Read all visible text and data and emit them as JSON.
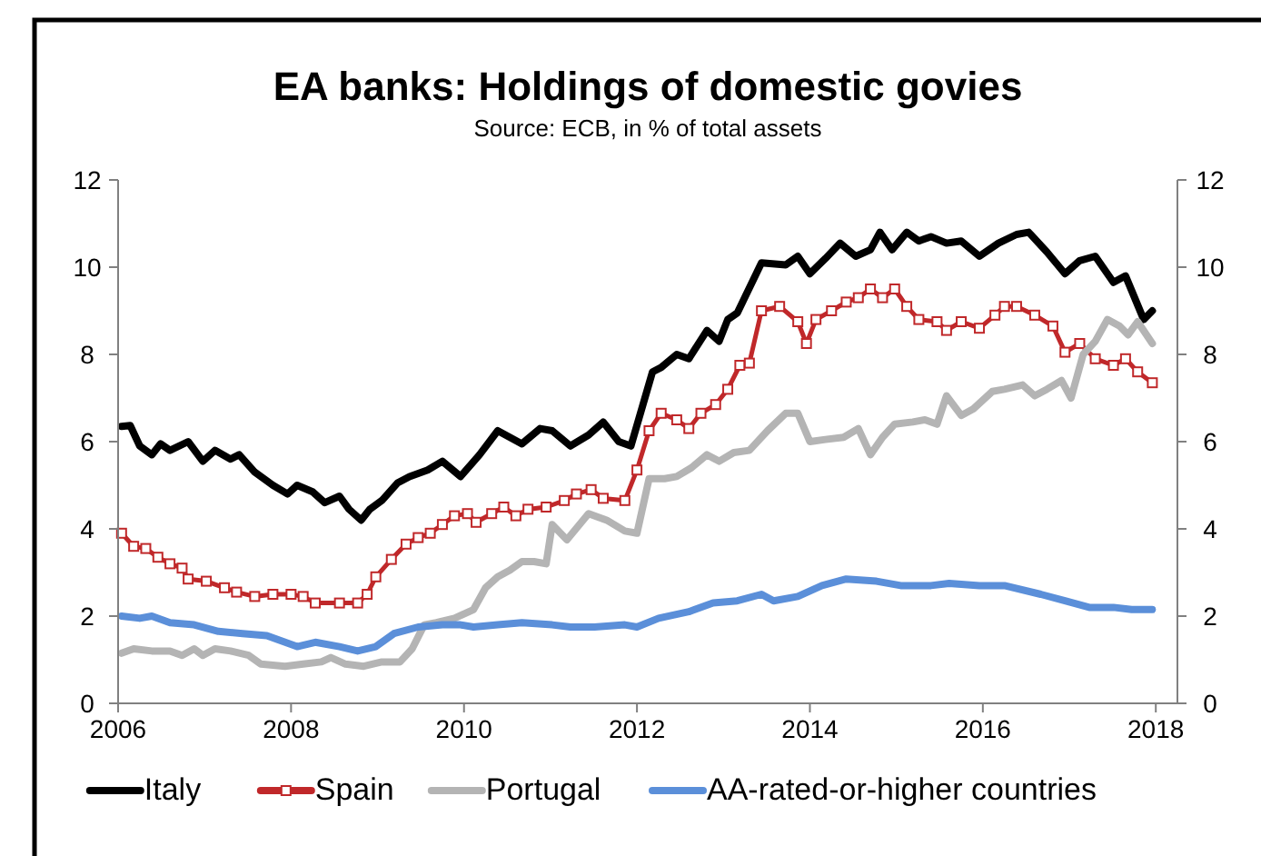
{
  "chart_data": {
    "type": "line",
    "title": "EA banks: Holdings of domestic govies",
    "subtitle": "Source: ECB, in % of total assets",
    "xlim": [
      2006,
      2018.25
    ],
    "xticks": [
      2006,
      2008,
      2010,
      2012,
      2014,
      2016,
      2018
    ],
    "ylim": [
      0,
      12
    ],
    "yticks": [
      0,
      2,
      4,
      6,
      8,
      10,
      12
    ],
    "y2lim": [
      0,
      12
    ],
    "y2ticks": [
      0,
      2,
      4,
      6,
      8,
      10,
      12
    ],
    "grid": false,
    "legend": "bottom",
    "line_style": "solid",
    "series": [
      {
        "name": "Italy",
        "color": "#000000",
        "marker": "none",
        "x": [
          2006.04,
          2006.14,
          2006.25,
          2006.39,
          2006.49,
          2006.6,
          2006.81,
          2006.98,
          2007.12,
          2007.3,
          2007.4,
          2007.58,
          2007.79,
          2007.96,
          2008.07,
          2008.25,
          2008.39,
          2008.56,
          2008.67,
          2008.81,
          2008.91,
          2009.05,
          2009.23,
          2009.37,
          2009.58,
          2009.75,
          2009.96,
          2010.18,
          2010.39,
          2010.53,
          2010.67,
          2010.88,
          2011.02,
          2011.23,
          2011.44,
          2011.61,
          2011.79,
          2011.93,
          2012.18,
          2012.28,
          2012.46,
          2012.6,
          2012.81,
          2012.95,
          2013.05,
          2013.16,
          2013.44,
          2013.72,
          2013.86,
          2014.0,
          2014.18,
          2014.35,
          2014.53,
          2014.7,
          2014.81,
          2014.95,
          2015.12,
          2015.26,
          2015.4,
          2015.58,
          2015.75,
          2015.96,
          2016.18,
          2016.39,
          2016.53,
          2016.74,
          2016.95,
          2017.12,
          2017.3,
          2017.51,
          2017.65,
          2017.86,
          2017.96
        ],
        "values": [
          6.35,
          6.37,
          5.9,
          5.7,
          5.95,
          5.8,
          6.0,
          5.55,
          5.8,
          5.6,
          5.7,
          5.3,
          5.0,
          4.8,
          5.0,
          4.85,
          4.6,
          4.75,
          4.45,
          4.2,
          4.45,
          4.65,
          5.05,
          5.2,
          5.35,
          5.55,
          5.2,
          5.7,
          6.25,
          6.1,
          5.95,
          6.3,
          6.25,
          5.9,
          6.15,
          6.45,
          6.0,
          5.9,
          7.6,
          7.7,
          8.0,
          7.9,
          8.55,
          8.3,
          8.8,
          8.95,
          10.1,
          10.05,
          10.25,
          9.85,
          10.2,
          10.55,
          10.25,
          10.4,
          10.8,
          10.4,
          10.8,
          10.6,
          10.7,
          10.55,
          10.6,
          10.25,
          10.55,
          10.75,
          10.8,
          10.35,
          9.85,
          10.15,
          10.25,
          9.65,
          9.8,
          8.8,
          9.0
        ]
      },
      {
        "name": "Spain",
        "color": "#c0282a",
        "marker": "square",
        "x": [
          2006.04,
          2006.18,
          2006.32,
          2006.46,
          2006.6,
          2006.74,
          2006.81,
          2007.02,
          2007.23,
          2007.37,
          2007.58,
          2007.79,
          2008.0,
          2008.14,
          2008.28,
          2008.56,
          2008.77,
          2008.88,
          2008.98,
          2009.16,
          2009.33,
          2009.47,
          2009.61,
          2009.75,
          2009.89,
          2010.04,
          2010.14,
          2010.32,
          2010.46,
          2010.6,
          2010.74,
          2010.95,
          2011.16,
          2011.3,
          2011.47,
          2011.61,
          2011.86,
          2012.0,
          2012.14,
          2012.28,
          2012.46,
          2012.6,
          2012.74,
          2012.91,
          2013.05,
          2013.19,
          2013.3,
          2013.44,
          2013.65,
          2013.86,
          2013.96,
          2014.07,
          2014.25,
          2014.42,
          2014.56,
          2014.7,
          2014.84,
          2014.98,
          2015.12,
          2015.26,
          2015.47,
          2015.58,
          2015.75,
          2015.96,
          2016.14,
          2016.25,
          2016.39,
          2016.6,
          2016.81,
          2016.95,
          2017.12,
          2017.3,
          2017.51,
          2017.65,
          2017.79,
          2017.96
        ],
        "values": [
          3.9,
          3.6,
          3.55,
          3.35,
          3.2,
          3.1,
          2.85,
          2.8,
          2.65,
          2.55,
          2.45,
          2.5,
          2.5,
          2.45,
          2.3,
          2.3,
          2.3,
          2.5,
          2.9,
          3.3,
          3.65,
          3.8,
          3.9,
          4.1,
          4.3,
          4.35,
          4.15,
          4.35,
          4.5,
          4.3,
          4.45,
          4.5,
          4.65,
          4.8,
          4.9,
          4.7,
          4.65,
          5.35,
          6.25,
          6.65,
          6.5,
          6.3,
          6.65,
          6.85,
          7.2,
          7.75,
          7.8,
          9.0,
          9.1,
          8.75,
          8.25,
          8.8,
          9.0,
          9.2,
          9.3,
          9.5,
          9.3,
          9.5,
          9.1,
          8.8,
          8.75,
          8.55,
          8.75,
          8.6,
          8.9,
          9.1,
          9.1,
          8.9,
          8.65,
          8.05,
          8.25,
          7.9,
          7.75,
          7.9,
          7.6,
          7.35
        ]
      },
      {
        "name": "Portugal",
        "color": "#b4b4b4",
        "marker": "none",
        "x": [
          2006.04,
          2006.18,
          2006.39,
          2006.6,
          2006.74,
          2006.88,
          2006.98,
          2007.12,
          2007.3,
          2007.51,
          2007.65,
          2007.93,
          2008.14,
          2008.35,
          2008.46,
          2008.63,
          2008.84,
          2009.05,
          2009.26,
          2009.4,
          2009.54,
          2009.68,
          2009.89,
          2010.11,
          2010.25,
          2010.39,
          2010.53,
          2010.67,
          2010.81,
          2010.95,
          2011.02,
          2011.19,
          2011.44,
          2011.65,
          2011.86,
          2012.0,
          2012.14,
          2012.32,
          2012.46,
          2012.63,
          2012.81,
          2012.95,
          2013.12,
          2013.3,
          2013.51,
          2013.72,
          2013.86,
          2014.0,
          2014.18,
          2014.39,
          2014.56,
          2014.7,
          2014.84,
          2014.98,
          2015.19,
          2015.33,
          2015.47,
          2015.58,
          2015.75,
          2015.89,
          2016.11,
          2016.25,
          2016.46,
          2016.6,
          2016.74,
          2016.91,
          2017.02,
          2017.16,
          2017.3,
          2017.44,
          2017.58,
          2017.68,
          2017.79,
          2017.96
        ],
        "values": [
          1.15,
          1.25,
          1.2,
          1.2,
          1.1,
          1.25,
          1.1,
          1.25,
          1.2,
          1.1,
          0.9,
          0.85,
          0.9,
          0.95,
          1.05,
          0.9,
          0.85,
          0.95,
          0.95,
          1.25,
          1.8,
          1.85,
          1.95,
          2.15,
          2.65,
          2.9,
          3.05,
          3.25,
          3.25,
          3.2,
          4.1,
          3.75,
          4.35,
          4.2,
          3.95,
          3.9,
          5.15,
          5.15,
          5.2,
          5.4,
          5.7,
          5.55,
          5.75,
          5.8,
          6.25,
          6.65,
          6.65,
          6.0,
          6.05,
          6.1,
          6.3,
          5.7,
          6.1,
          6.4,
          6.45,
          6.5,
          6.4,
          7.05,
          6.6,
          6.75,
          7.15,
          7.2,
          7.3,
          7.05,
          7.2,
          7.4,
          7.0,
          8.0,
          8.3,
          8.8,
          8.65,
          8.45,
          8.75,
          8.25
        ]
      },
      {
        "name": "AA-rated-or-higher countries",
        "color": "#5b8fd9",
        "marker": "none",
        "x": [
          2006.04,
          2006.25,
          2006.39,
          2006.6,
          2006.88,
          2007.16,
          2007.44,
          2007.72,
          2008.07,
          2008.28,
          2008.56,
          2008.77,
          2008.98,
          2009.19,
          2009.47,
          2009.75,
          2009.96,
          2010.11,
          2010.39,
          2010.67,
          2011.02,
          2011.23,
          2011.51,
          2011.86,
          2012.0,
          2012.25,
          2012.6,
          2012.88,
          2013.16,
          2013.44,
          2013.58,
          2013.86,
          2014.14,
          2014.42,
          2014.77,
          2015.05,
          2015.4,
          2015.61,
          2015.96,
          2016.25,
          2016.67,
          2016.95,
          2017.23,
          2017.51,
          2017.72,
          2017.96
        ],
        "values": [
          2.0,
          1.95,
          2.0,
          1.85,
          1.8,
          1.65,
          1.6,
          1.55,
          1.3,
          1.4,
          1.3,
          1.2,
          1.3,
          1.6,
          1.75,
          1.8,
          1.8,
          1.75,
          1.8,
          1.85,
          1.8,
          1.75,
          1.75,
          1.8,
          1.75,
          1.95,
          2.1,
          2.3,
          2.35,
          2.5,
          2.35,
          2.45,
          2.7,
          2.85,
          2.8,
          2.7,
          2.7,
          2.75,
          2.7,
          2.7,
          2.5,
          2.35,
          2.2,
          2.2,
          2.15,
          2.15
        ]
      }
    ]
  }
}
